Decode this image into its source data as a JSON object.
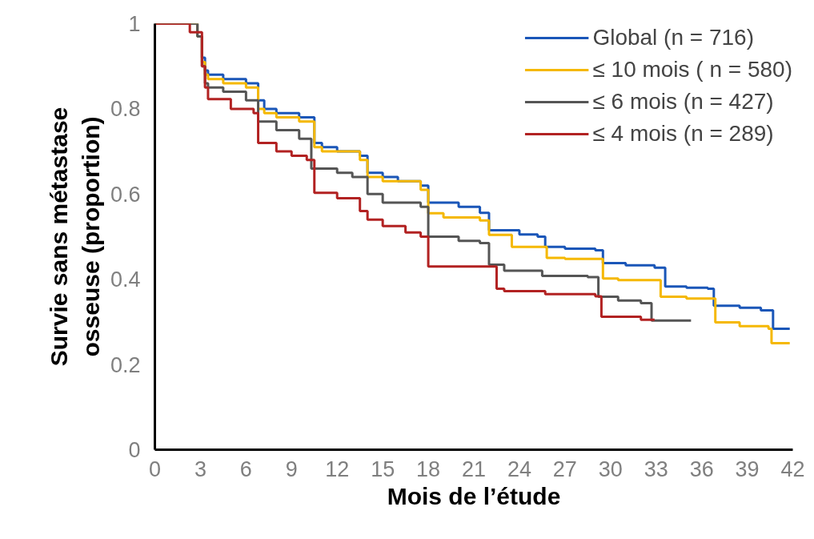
{
  "chart_data": {
    "type": "step",
    "xlabel": "Mois de l’étude",
    "ylabel": "Survie sans métastase\nosseuse (proportion)",
    "xlim": [
      0,
      42
    ],
    "xticks": [
      0,
      3,
      6,
      9,
      12,
      15,
      18,
      21,
      24,
      27,
      30,
      33,
      36,
      39,
      42
    ],
    "ylim": [
      0,
      1
    ],
    "yticks": [
      0,
      0.2,
      0.4,
      0.6,
      0.8,
      1
    ],
    "grid": false,
    "legend": "top right",
    "series": [
      {
        "name": "Global (n = 716)",
        "color": "#1a56b8",
        "x": [
          0,
          2.8,
          3.1,
          3.3,
          3.5,
          4.5,
          6,
          6.8,
          7.2,
          8,
          9.5,
          10.5,
          11,
          12,
          13.5,
          14,
          15,
          16,
          17.5,
          18,
          20,
          21.4,
          22,
          24,
          25.2,
          25.7,
          27,
          29,
          29.5,
          31,
          32.9,
          33.6,
          35,
          36.4,
          36.8,
          38.5,
          39.9,
          40.7,
          41.8
        ],
        "values": [
          1.0,
          0.97,
          0.92,
          0.89,
          0.88,
          0.87,
          0.86,
          0.82,
          0.8,
          0.79,
          0.78,
          0.72,
          0.71,
          0.7,
          0.69,
          0.65,
          0.64,
          0.63,
          0.62,
          0.58,
          0.57,
          0.556,
          0.515,
          0.505,
          0.5,
          0.476,
          0.472,
          0.468,
          0.438,
          0.433,
          0.427,
          0.383,
          0.38,
          0.378,
          0.338,
          0.333,
          0.327,
          0.284,
          0.284
        ]
      },
      {
        "name": "≤ 10 mois ( n = 580)",
        "color": "#f5b800",
        "x": [
          0,
          2.8,
          3.1,
          3.3,
          3.5,
          4.5,
          6,
          6.8,
          7.2,
          8,
          9.5,
          10.5,
          11,
          13.5,
          14,
          15,
          17.5,
          18,
          19,
          21.4,
          22,
          23.5,
          25.8,
          27,
          29.5,
          30.5,
          33.3,
          35,
          36.9,
          38.5,
          40.4,
          40.6,
          41.8
        ],
        "values": [
          1.0,
          0.97,
          0.91,
          0.88,
          0.87,
          0.86,
          0.85,
          0.8,
          0.79,
          0.78,
          0.77,
          0.71,
          0.7,
          0.68,
          0.64,
          0.63,
          0.61,
          0.555,
          0.545,
          0.538,
          0.504,
          0.476,
          0.45,
          0.448,
          0.402,
          0.398,
          0.359,
          0.355,
          0.299,
          0.29,
          0.284,
          0.25,
          0.25
        ]
      },
      {
        "name": "≤ 6 mois (n = 427)",
        "color": "#555555",
        "x": [
          0,
          2.8,
          3.1,
          3.3,
          3.5,
          4.5,
          6,
          6.8,
          8,
          9.5,
          10.3,
          12,
          13,
          14,
          15,
          17.5,
          18,
          20,
          21.4,
          22,
          23,
          25.5,
          28.5,
          29.2,
          30.5,
          32,
          32.7,
          35.3
        ],
        "values": [
          1.0,
          0.97,
          0.9,
          0.86,
          0.85,
          0.84,
          0.82,
          0.77,
          0.75,
          0.73,
          0.66,
          0.65,
          0.64,
          0.6,
          0.58,
          0.57,
          0.5,
          0.49,
          0.485,
          0.434,
          0.42,
          0.408,
          0.405,
          0.359,
          0.35,
          0.344,
          0.303,
          0.303
        ]
      },
      {
        "name": "≤ 4 mois (n = 289)",
        "color": "#b22222",
        "x": [
          0,
          2.3,
          3.1,
          3.3,
          3.5,
          5,
          6.5,
          6.8,
          8,
          9,
          10,
          10.5,
          12,
          13.5,
          14,
          15,
          16.5,
          17.5,
          18,
          21.4,
          22.5,
          23,
          25.7,
          29,
          29.4,
          32,
          32.9
        ],
        "values": [
          1.0,
          0.98,
          0.9,
          0.85,
          0.823,
          0.8,
          0.79,
          0.72,
          0.7,
          0.69,
          0.68,
          0.603,
          0.59,
          0.56,
          0.54,
          0.525,
          0.51,
          0.5,
          0.43,
          0.43,
          0.378,
          0.372,
          0.365,
          0.36,
          0.312,
          0.305,
          0.305
        ]
      }
    ]
  }
}
